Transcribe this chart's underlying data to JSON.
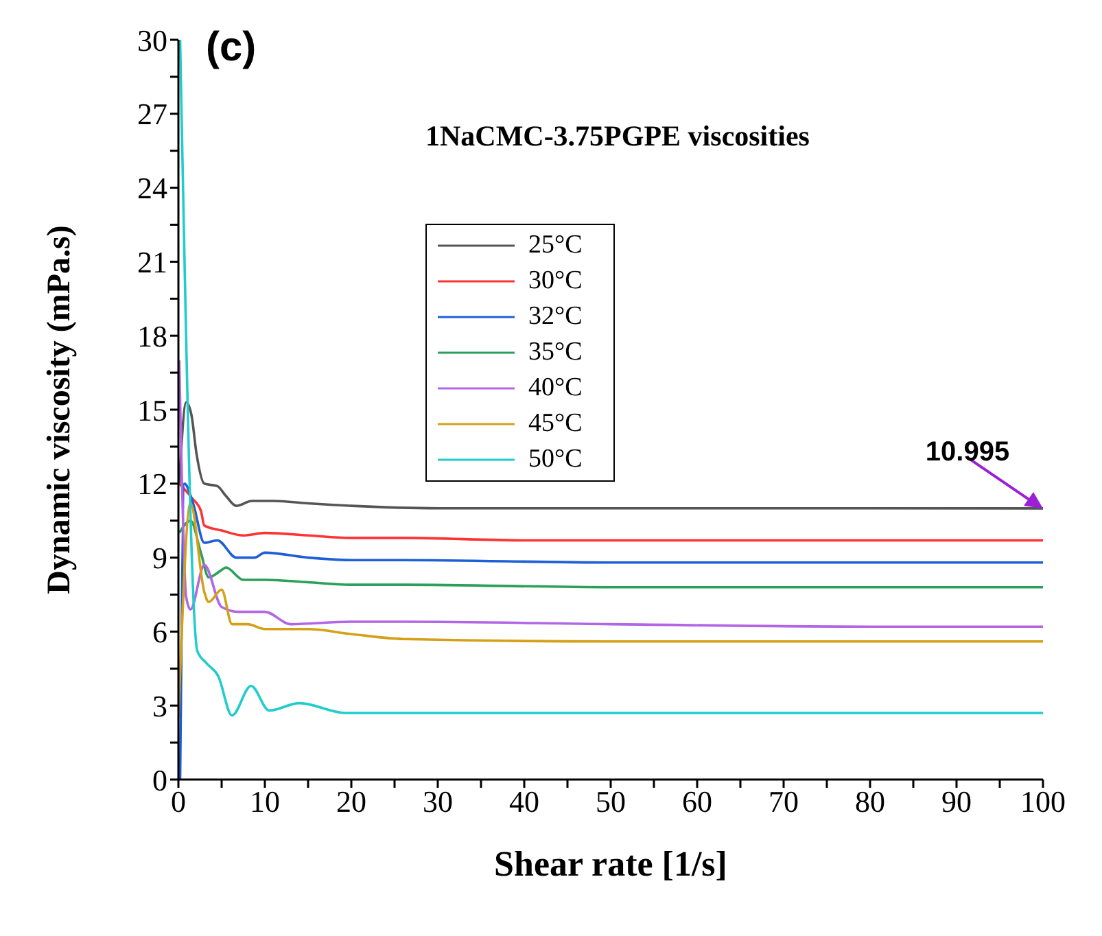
{
  "chart_data": {
    "type": "line",
    "title": "(c)",
    "xlabel": "Shear rate [1/s]",
    "ylabel": "Dynamic viscosity (mPa.s)",
    "legend_title": "1NaCMC-3.75PGPE viscosities",
    "xlim": [
      0,
      100
    ],
    "ylim": [
      0,
      30
    ],
    "xticks": [
      0,
      {
        "value": 5,
        "label": null
      },
      10,
      {
        "value": 15,
        "label": null
      },
      20,
      {
        "value": 25,
        "label": null
      },
      30,
      {
        "value": 35,
        "label": null
      },
      40,
      {
        "value": 45,
        "label": null
      },
      50,
      {
        "value": 55,
        "label": null
      },
      60,
      {
        "value": 65,
        "label": null
      },
      70,
      {
        "value": 75,
        "label": null
      },
      80,
      {
        "value": 85,
        "label": null
      },
      90,
      {
        "value": 95,
        "label": null
      },
      100
    ],
    "yticks": [
      0,
      {
        "value": 1.5,
        "label": null
      },
      3,
      {
        "value": 4.5,
        "label": null
      },
      6,
      {
        "value": 7.5,
        "label": null
      },
      9,
      {
        "value": 10.5,
        "label": null
      },
      12,
      {
        "value": 13.5,
        "label": null
      },
      15,
      {
        "value": 16.5,
        "label": null
      },
      18,
      {
        "value": 19.5,
        "label": null
      },
      21,
      {
        "value": 22.5,
        "label": null
      },
      24,
      {
        "value": 25.5,
        "label": null
      },
      27,
      {
        "value": 28.5,
        "label": null
      },
      30
    ],
    "grid": false,
    "legend": "top left",
    "marker": "none",
    "line_style": "solid",
    "annotations": [
      {
        "text": "10.995",
        "x": 100,
        "y": 10.995
      }
    ],
    "series": [
      {
        "name": "25°C",
        "color": "#555555",
        "x": [
          0.1,
          0.9,
          1.5,
          2.1,
          3,
          4.5,
          5.5,
          6.7,
          8.5,
          11,
          15,
          20,
          30,
          50,
          70,
          100
        ],
        "values": [
          12,
          15.3,
          14.8,
          13.2,
          12,
          11.9,
          11.5,
          11.1,
          11.3,
          11.3,
          11.2,
          11.1,
          11,
          11,
          11,
          10.995
        ]
      },
      {
        "name": "30°C",
        "color": "#ff3333",
        "x": [
          0.1,
          1.6,
          2.6,
          3,
          5,
          7.5,
          10,
          15,
          20,
          26,
          40,
          60,
          80,
          100
        ],
        "values": [
          12,
          11.4,
          10.9,
          10.3,
          10.1,
          9.9,
          10,
          9.9,
          9.8,
          9.8,
          9.7,
          9.7,
          9.7,
          9.7
        ]
      },
      {
        "name": "32°C",
        "color": "#1f5fd6",
        "x": [
          0.2,
          0.7,
          1.7,
          3,
          4.5,
          6.7,
          8.8,
          10,
          15,
          20,
          26,
          50,
          80,
          100
        ],
        "values": [
          0,
          12,
          11.2,
          9.6,
          9.7,
          9,
          9,
          9.2,
          9,
          8.9,
          8.9,
          8.8,
          8.8,
          8.8
        ]
      },
      {
        "name": "35°C",
        "color": "#2ca05a",
        "x": [
          0.1,
          1.4,
          2.6,
          3.5,
          5,
          5.5,
          7.5,
          10,
          15,
          20,
          26,
          50,
          80,
          100
        ],
        "values": [
          10,
          10.5,
          9.2,
          8.2,
          8.5,
          8.6,
          8.1,
          8.1,
          8,
          7.9,
          7.9,
          7.8,
          7.8,
          7.8
        ]
      },
      {
        "name": "40°C",
        "color": "#b266e6",
        "x": [
          0.1,
          0.9,
          1.4,
          3,
          5,
          7,
          10,
          13,
          20,
          26,
          50,
          80,
          100
        ],
        "values": [
          17,
          7.4,
          6.9,
          8.7,
          7,
          6.8,
          6.8,
          6.3,
          6.4,
          6.4,
          6.3,
          6.2,
          6.2
        ]
      },
      {
        "name": "45°C",
        "color": "#d4a017",
        "x": [
          0,
          1.4,
          3,
          3.5,
          5,
          6.2,
          8,
          10,
          15,
          20,
          26,
          50,
          80,
          100
        ],
        "values": [
          2.5,
          11.2,
          7.6,
          7.2,
          7.7,
          6.3,
          6.3,
          6.1,
          6.1,
          5.9,
          5.7,
          5.6,
          5.6,
          5.6
        ]
      },
      {
        "name": "50°C",
        "color": "#22cccc",
        "x": [
          0.2,
          2.2,
          3.3,
          4.6,
          6.2,
          8.4,
          10.5,
          14,
          19.3,
          26,
          50,
          80,
          100
        ],
        "values": [
          30,
          5.2,
          4.7,
          4.2,
          2.6,
          3.8,
          2.8,
          3.1,
          2.7,
          2.7,
          2.7,
          2.7,
          2.7
        ]
      }
    ]
  }
}
